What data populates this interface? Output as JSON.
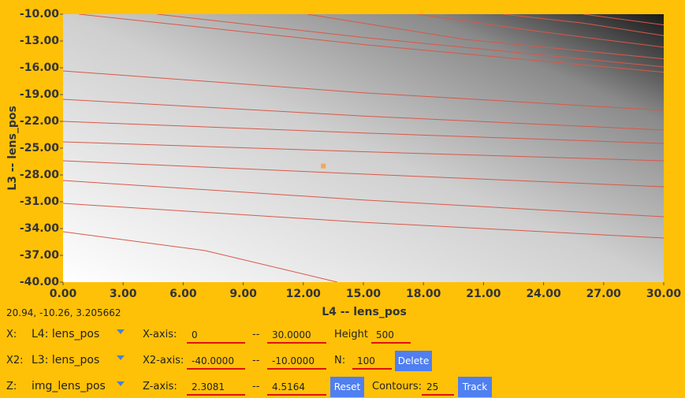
{
  "chart_data": {
    "type": "contour",
    "xlabel": "L4 -- lens_pos",
    "ylabel": "L3 -- lens_pos",
    "xlim": [
      0,
      30
    ],
    "ylim": [
      -40,
      -10
    ],
    "xticks": [
      {
        "value": 0,
        "label": "0.00"
      },
      {
        "value": 3,
        "label": "3.00"
      },
      {
        "value": 6,
        "label": "6.00"
      },
      {
        "value": 9,
        "label": "9.00"
      },
      {
        "value": 12,
        "label": "12.00"
      },
      {
        "value": 15,
        "label": "15.00"
      },
      {
        "value": 18,
        "label": "18.00"
      },
      {
        "value": 21,
        "label": "21.00"
      },
      {
        "value": 24,
        "label": "24.00"
      },
      {
        "value": 27,
        "label": "27.00"
      },
      {
        "value": 30,
        "label": "30.00"
      }
    ],
    "yticks": [
      {
        "value": -10,
        "label": "-10.00"
      },
      {
        "value": -13,
        "label": "-13.00"
      },
      {
        "value": -16,
        "label": "-16.00"
      },
      {
        "value": -19,
        "label": "-19.00"
      },
      {
        "value": -22,
        "label": "-22.00"
      },
      {
        "value": -25,
        "label": "-25.00"
      },
      {
        "value": -28,
        "label": "-28.00"
      },
      {
        "value": -31,
        "label": "-31.00"
      },
      {
        "value": -34,
        "label": "-34.00"
      },
      {
        "value": -37,
        "label": "-37.00"
      },
      {
        "value": -40,
        "label": "-40.00"
      }
    ],
    "line_color": "#d8584a",
    "series": [
      {
        "x": [
          0,
          15,
          30
        ],
        "y": [
          -16.35,
          -18.8,
          -20.76
        ]
      },
      {
        "x": [
          0,
          15,
          30
        ],
        "y": [
          -19.53,
          -21.4,
          -22.97
        ]
      },
      {
        "x": [
          0,
          15,
          30
        ],
        "y": [
          -22.0,
          -23.3,
          -24.47
        ]
      },
      {
        "x": [
          0,
          15,
          30
        ],
        "y": [
          -24.29,
          -25.4,
          -26.41
        ]
      },
      {
        "x": [
          0,
          15,
          30
        ],
        "y": [
          -26.41,
          -27.9,
          -29.32
        ]
      },
      {
        "x": [
          0,
          15,
          30
        ],
        "y": [
          -28.62,
          -30.8,
          -32.68
        ]
      },
      {
        "x": [
          0,
          15,
          30
        ],
        "y": [
          -31.18,
          -33.3,
          -35.06
        ]
      },
      {
        "x": [
          0,
          7.1,
          13.7
        ],
        "y": [
          -34.35,
          -36.47,
          -40
        ]
      },
      {
        "x": [
          0.8,
          15,
          30
        ],
        "y": [
          -10,
          -13.4,
          -16.5
        ]
      },
      {
        "x": [
          4.7,
          15,
          30
        ],
        "y": [
          -10,
          -12.6,
          -15.9
        ]
      },
      {
        "x": [
          12.2,
          20,
          30
        ],
        "y": [
          -10,
          -12.8,
          -15
        ]
      },
      {
        "x": [
          17.7,
          24,
          30
        ],
        "y": [
          -10,
          -12,
          -13.7
        ]
      },
      {
        "x": [
          22,
          26,
          30
        ],
        "y": [
          -10,
          -11,
          -12.4
        ]
      },
      {
        "x": [
          26,
          30
        ],
        "y": [
          -10,
          -11.2
        ]
      }
    ],
    "marker": {
      "x": 13,
      "y": -27,
      "color": "#f0a860"
    }
  },
  "status": "20.94, -10.26, 3.205662",
  "controls": {
    "rows": [
      {
        "label": "X:",
        "select": "L4: lens_pos",
        "axis_label": "X-axis:",
        "min": "0",
        "sep": "--",
        "max": "30.0000",
        "extra_label": "Height",
        "extra_value": "500"
      },
      {
        "label": "X2:",
        "select": "L3: lens_pos",
        "axis_label": "X2-axis:",
        "min": "-40.0000",
        "sep": "--",
        "max": "-10.0000",
        "extra_label": "N:",
        "extra_value": "100",
        "button": "Delete"
      },
      {
        "label": "Z:",
        "select": "img_lens_pos",
        "axis_label": "Z-axis:",
        "min": "2.3081",
        "sep": "--",
        "max": "4.5164",
        "button": "Reset",
        "extra_label": "Contours:",
        "extra_value": "25",
        "button2": "Track"
      }
    ]
  }
}
